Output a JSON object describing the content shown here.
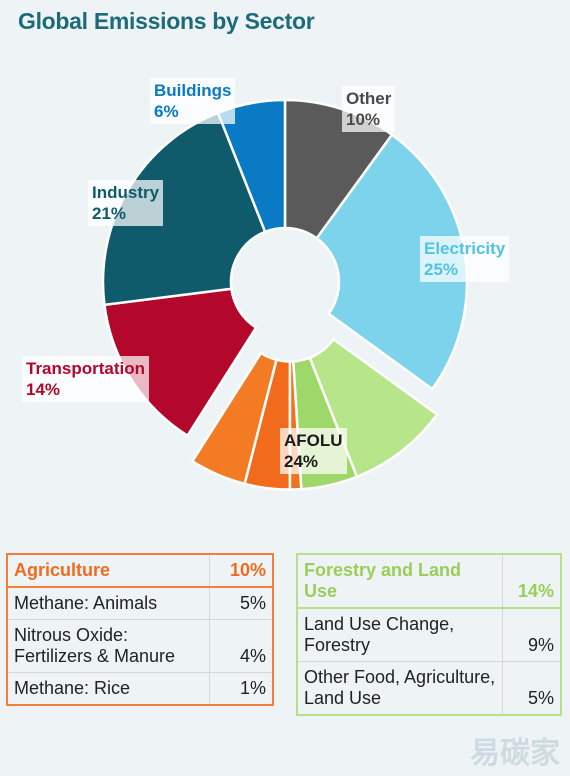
{
  "title": "Global Emissions by Sector",
  "chart_data": {
    "type": "pie",
    "title": "Global Emissions by Sector",
    "slices": [
      {
        "label": "Other",
        "value": 10,
        "display": "10%",
        "color": "#5a5a5a"
      },
      {
        "label": "Electricity",
        "value": 25,
        "display": "25%",
        "color": "#7dd3ec"
      },
      {
        "label": "AFOLU",
        "value": 24,
        "display": "24%",
        "color": "#b7e58a"
      },
      {
        "label": "Transportation",
        "value": 14,
        "display": "14%",
        "color": "#b3072b"
      },
      {
        "label": "Industry",
        "value": 21,
        "display": "21%",
        "color": "#0f5a6b"
      },
      {
        "label": "Buildings",
        "value": 6,
        "display": "6%",
        "color": "#0a7ac4"
      }
    ],
    "afolu_breakdown": [
      {
        "label": "Land Use Change, Forestry",
        "value": 9,
        "color": "#b7e58a"
      },
      {
        "label": "Other Food, Agriculture, Land Use",
        "value": 5,
        "color": "#9fd86a"
      },
      {
        "label": "Methane: Rice",
        "value": 1,
        "color": "#f0741e"
      },
      {
        "label": "Nitrous Oxide: Fertilizers & Manure",
        "value": 4,
        "color": "#f26a1b"
      },
      {
        "label": "Methane: Animals",
        "value": 5,
        "color": "#f27b24"
      }
    ]
  },
  "labels": {
    "buildings": {
      "name": "Buildings",
      "pct": "6%",
      "color": "#0a7ac4"
    },
    "other": {
      "name": "Other",
      "pct": "10%",
      "color": "#4a4a4a"
    },
    "industry": {
      "name": "Industry",
      "pct": "21%",
      "color": "#0f5a6b"
    },
    "electricity": {
      "name": "Electricity",
      "pct": "25%",
      "color": "#52c3e6"
    },
    "transportation": {
      "name": "Transportation",
      "pct": "14%",
      "color": "#b3072b"
    },
    "afolu": {
      "name": "AFOLU",
      "pct": "24%",
      "color": "#1a1a1a"
    }
  },
  "agriculture": {
    "header": "Agriculture",
    "header_value": "10%",
    "rows": [
      {
        "label": "Methane: Animals",
        "value": "5%"
      },
      {
        "label": "Nitrous Oxide: Fertilizers & Manure",
        "value": "4%"
      },
      {
        "label": "Methane: Rice",
        "value": "1%"
      }
    ]
  },
  "forestry": {
    "header": "Forestry and Land Use",
    "header_value": "14%",
    "rows": [
      {
        "label": "Land Use Change, Forestry",
        "value": "9%"
      },
      {
        "label": "Other Food, Agriculture, Land Use",
        "value": "5%"
      }
    ]
  },
  "watermark": "易碳家"
}
